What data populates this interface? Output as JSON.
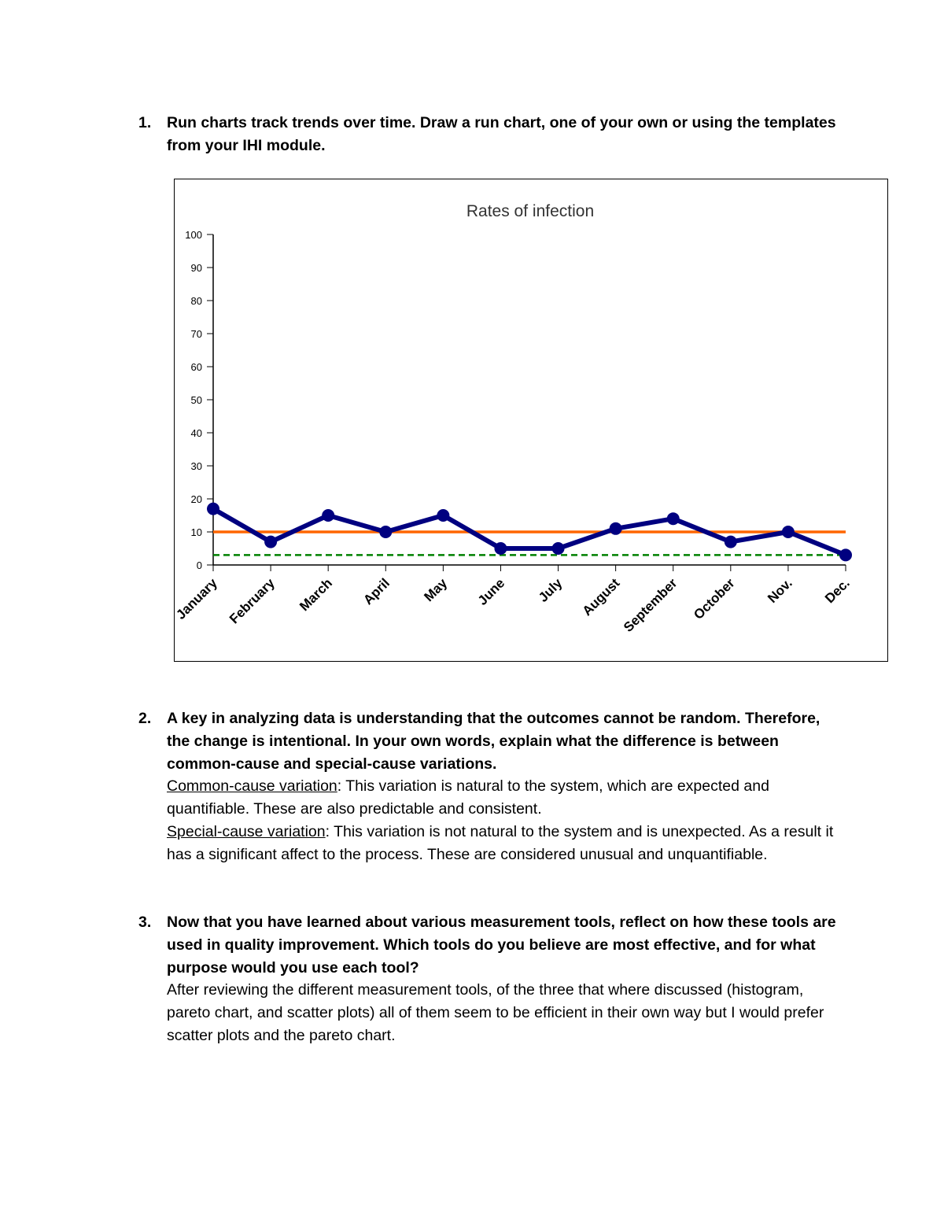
{
  "questions": [
    {
      "number": "1.",
      "prompt": "Run charts track trends over time. Draw a run chart, one of your own or using the templates from your IHI module."
    },
    {
      "number": "2.",
      "prompt": "A key in analyzing data is understanding that the outcomes cannot be random. Therefore, the change is intentional. In your own words, explain what the difference is between common-cause and special-cause variations.",
      "answers": [
        {
          "term": "Common-cause variation",
          "text": ": This variation is natural to the system, which are expected and quantifiable. These are also predictable and consistent."
        },
        {
          "term": "Special-cause variation",
          "text": ": This variation is not natural to the system and is unexpected. As a result it has a significant affect to the process. These are considered unusual and unquantifiable."
        }
      ]
    },
    {
      "number": "3.",
      "prompt": "Now that you have learned about various measurement tools, reflect on how these tools are used in quality improvement. Which tools do you believe are most effective, and for what purpose would you use each tool?",
      "answer": "After reviewing the different measurement tools, of the three that where discussed (histogram, pareto chart, and scatter plots) all of them seem to be efficient in their own way but I would prefer scatter plots and the pareto chart."
    }
  ],
  "chart_data": {
    "type": "line",
    "title": "Rates of infection",
    "categories": [
      "January",
      "February",
      "March",
      "April",
      "May",
      "June",
      "July",
      "August",
      "September",
      "October",
      "Nov.",
      "Dec."
    ],
    "series": [
      {
        "values": [
          17,
          7,
          15,
          10,
          15,
          5,
          5,
          11,
          14,
          7,
          10,
          3
        ],
        "color": "#000080"
      }
    ],
    "reference_lines": [
      {
        "value": 10,
        "color": "#ff6600",
        "style": "solid"
      },
      {
        "value": 3,
        "color": "#008000",
        "style": "dashed"
      }
    ],
    "ylim": [
      0,
      100
    ],
    "yticks": [
      0,
      10,
      20,
      30,
      40,
      50,
      60,
      70,
      80,
      90,
      100
    ],
    "grid": false
  }
}
